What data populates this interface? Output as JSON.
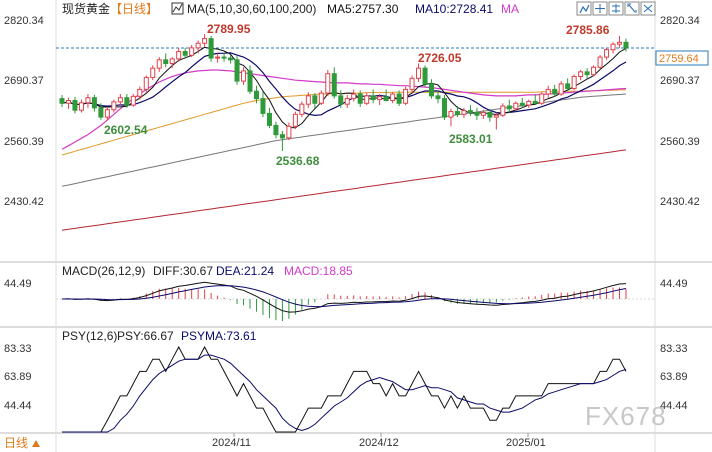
{
  "header": {
    "symbol": "现货黄金",
    "period": "【日线】",
    "ma_params": "MA(5,10,30,60,100,200)",
    "ma5_text": "MA5:2757.30",
    "ma10_text": "MA10:2728.41",
    "ma_more": "MA"
  },
  "macd_header": {
    "params": "MACD(26,12,9)",
    "diff": "DIFF:30.67",
    "dea": "DEA:21.24",
    "macd": "MACD:18.85"
  },
  "psy_header": {
    "params": "PSY(12,6)",
    "psy": "PSY:66.67",
    "psyma": "PSYMA:73.61"
  },
  "price_axis": {
    "ticks": [
      "2820.34",
      "2690.37",
      "2560.39",
      "2430.42"
    ],
    "last_price": "2759.64"
  },
  "macd_axis": {
    "ticks": [
      "44.49",
      "44.49"
    ]
  },
  "psy_axis": {
    "left_ticks": [
      "83.33",
      "63.89",
      "44.44"
    ],
    "right_ticks": [
      "83.33",
      "63.89",
      "44.44"
    ]
  },
  "time_axis": {
    "labels": [
      "2024/11",
      "2024/12",
      "2025/01"
    ]
  },
  "annotations": {
    "h1": "2789.95",
    "h2": "2726.05",
    "h3": "2785.86",
    "l1": "2602.54",
    "l2": "2536.68",
    "l3": "2583.01"
  },
  "footer": {
    "period_switch": "日线"
  },
  "watermark": "FX678",
  "colors": {
    "up": "#e0424b",
    "down": "#2e9a3a",
    "ma5": "#111111",
    "ma10": "#0a0a6a",
    "ma30": "#d23ac8",
    "ma60": "#e09a2a",
    "ma100": "#777777",
    "ma200": "#b3262f",
    "annot_high": "#c0392b",
    "annot_low": "#3e8e3e"
  },
  "chart_data": {
    "type": "candlestick",
    "title": "现货黄金【日线】",
    "price_range": [
      2380,
      2840
    ],
    "x_labels": [
      "2024/11",
      "2024/12",
      "2025/01"
    ],
    "annotated_highs": [
      2789.95,
      2726.05,
      2785.86
    ],
    "annotated_lows": [
      2602.54,
      2536.68,
      2583.01
    ],
    "last_price": 2759.64,
    "ma_latest": {
      "MA5": 2757.3,
      "MA10": 2728.41
    },
    "macd_latest": {
      "DIFF": 30.67,
      "DEA": 21.24,
      "MACD": 18.85
    },
    "psy_latest": {
      "PSY": 66.67,
      "PSYMA": 73.61
    },
    "candles": [
      {
        "o": 2650,
        "h": 2658,
        "l": 2632,
        "c": 2640
      },
      {
        "o": 2640,
        "h": 2652,
        "l": 2628,
        "c": 2646
      },
      {
        "o": 2646,
        "h": 2654,
        "l": 2618,
        "c": 2625
      },
      {
        "o": 2625,
        "h": 2648,
        "l": 2620,
        "c": 2641
      },
      {
        "o": 2641,
        "h": 2660,
        "l": 2630,
        "c": 2652
      },
      {
        "o": 2652,
        "h": 2658,
        "l": 2622,
        "c": 2630
      },
      {
        "o": 2630,
        "h": 2640,
        "l": 2604,
        "c": 2610
      },
      {
        "o": 2610,
        "h": 2632,
        "l": 2602.54,
        "c": 2626
      },
      {
        "o": 2626,
        "h": 2648,
        "l": 2620,
        "c": 2643
      },
      {
        "o": 2643,
        "h": 2660,
        "l": 2636,
        "c": 2652
      },
      {
        "o": 2652,
        "h": 2660,
        "l": 2630,
        "c": 2636
      },
      {
        "o": 2636,
        "h": 2660,
        "l": 2632,
        "c": 2655
      },
      {
        "o": 2655,
        "h": 2676,
        "l": 2648,
        "c": 2670
      },
      {
        "o": 2670,
        "h": 2700,
        "l": 2662,
        "c": 2696
      },
      {
        "o": 2696,
        "h": 2722,
        "l": 2690,
        "c": 2716
      },
      {
        "o": 2716,
        "h": 2740,
        "l": 2708,
        "c": 2734
      },
      {
        "o": 2734,
        "h": 2748,
        "l": 2718,
        "c": 2726
      },
      {
        "o": 2726,
        "h": 2740,
        "l": 2716,
        "c": 2736
      },
      {
        "o": 2736,
        "h": 2760,
        "l": 2730,
        "c": 2752
      },
      {
        "o": 2752,
        "h": 2760,
        "l": 2736,
        "c": 2744
      },
      {
        "o": 2744,
        "h": 2766,
        "l": 2740,
        "c": 2760
      },
      {
        "o": 2760,
        "h": 2776,
        "l": 2748,
        "c": 2770
      },
      {
        "o": 2770,
        "h": 2789.95,
        "l": 2762,
        "c": 2780
      },
      {
        "o": 2780,
        "h": 2786,
        "l": 2730,
        "c": 2738
      },
      {
        "o": 2738,
        "h": 2748,
        "l": 2728,
        "c": 2740
      },
      {
        "o": 2740,
        "h": 2748,
        "l": 2730,
        "c": 2738
      },
      {
        "o": 2738,
        "h": 2745,
        "l": 2726,
        "c": 2734
      },
      {
        "o": 2734,
        "h": 2742,
        "l": 2680,
        "c": 2688
      },
      {
        "o": 2688,
        "h": 2718,
        "l": 2680,
        "c": 2710
      },
      {
        "o": 2710,
        "h": 2722,
        "l": 2660,
        "c": 2666
      },
      {
        "o": 2666,
        "h": 2678,
        "l": 2640,
        "c": 2650
      },
      {
        "o": 2650,
        "h": 2664,
        "l": 2610,
        "c": 2618
      },
      {
        "o": 2618,
        "h": 2630,
        "l": 2586,
        "c": 2592
      },
      {
        "o": 2592,
        "h": 2600,
        "l": 2564,
        "c": 2572
      },
      {
        "o": 2572,
        "h": 2580,
        "l": 2536.68,
        "c": 2565
      },
      {
        "o": 2565,
        "h": 2598,
        "l": 2560,
        "c": 2590
      },
      {
        "o": 2590,
        "h": 2622,
        "l": 2584,
        "c": 2616
      },
      {
        "o": 2616,
        "h": 2644,
        "l": 2610,
        "c": 2638
      },
      {
        "o": 2638,
        "h": 2664,
        "l": 2630,
        "c": 2656
      },
      {
        "o": 2656,
        "h": 2662,
        "l": 2630,
        "c": 2640
      },
      {
        "o": 2640,
        "h": 2668,
        "l": 2636,
        "c": 2662
      },
      {
        "o": 2662,
        "h": 2712,
        "l": 2656,
        "c": 2704
      },
      {
        "o": 2704,
        "h": 2718,
        "l": 2650,
        "c": 2656
      },
      {
        "o": 2656,
        "h": 2668,
        "l": 2630,
        "c": 2638
      },
      {
        "o": 2638,
        "h": 2658,
        "l": 2630,
        "c": 2650
      },
      {
        "o": 2650,
        "h": 2670,
        "l": 2644,
        "c": 2660
      },
      {
        "o": 2660,
        "h": 2668,
        "l": 2632,
        "c": 2640
      },
      {
        "o": 2640,
        "h": 2662,
        "l": 2636,
        "c": 2656
      },
      {
        "o": 2656,
        "h": 2670,
        "l": 2640,
        "c": 2648
      },
      {
        "o": 2648,
        "h": 2660,
        "l": 2636,
        "c": 2654
      },
      {
        "o": 2654,
        "h": 2670,
        "l": 2644,
        "c": 2646
      },
      {
        "o": 2646,
        "h": 2664,
        "l": 2640,
        "c": 2660
      },
      {
        "o": 2660,
        "h": 2668,
        "l": 2634,
        "c": 2640
      },
      {
        "o": 2640,
        "h": 2676,
        "l": 2636,
        "c": 2670
      },
      {
        "o": 2670,
        "h": 2700,
        "l": 2662,
        "c": 2694
      },
      {
        "o": 2694,
        "h": 2726.05,
        "l": 2686,
        "c": 2716
      },
      {
        "o": 2716,
        "h": 2722,
        "l": 2676,
        "c": 2682
      },
      {
        "o": 2682,
        "h": 2692,
        "l": 2650,
        "c": 2656
      },
      {
        "o": 2656,
        "h": 2668,
        "l": 2640,
        "c": 2650
      },
      {
        "o": 2650,
        "h": 2658,
        "l": 2604,
        "c": 2610
      },
      {
        "o": 2610,
        "h": 2628,
        "l": 2590,
        "c": 2622
      },
      {
        "o": 2622,
        "h": 2634,
        "l": 2610,
        "c": 2616
      },
      {
        "o": 2616,
        "h": 2630,
        "l": 2608,
        "c": 2624
      },
      {
        "o": 2624,
        "h": 2636,
        "l": 2612,
        "c": 2620
      },
      {
        "o": 2620,
        "h": 2630,
        "l": 2604,
        "c": 2614
      },
      {
        "o": 2614,
        "h": 2626,
        "l": 2606,
        "c": 2620
      },
      {
        "o": 2620,
        "h": 2628,
        "l": 2600,
        "c": 2610
      },
      {
        "o": 2610,
        "h": 2620,
        "l": 2583.01,
        "c": 2614
      },
      {
        "o": 2614,
        "h": 2640,
        "l": 2610,
        "c": 2634
      },
      {
        "o": 2634,
        "h": 2648,
        "l": 2620,
        "c": 2628
      },
      {
        "o": 2628,
        "h": 2644,
        "l": 2624,
        "c": 2640
      },
      {
        "o": 2640,
        "h": 2652,
        "l": 2630,
        "c": 2636
      },
      {
        "o": 2636,
        "h": 2648,
        "l": 2630,
        "c": 2644
      },
      {
        "o": 2644,
        "h": 2660,
        "l": 2636,
        "c": 2640
      },
      {
        "o": 2640,
        "h": 2664,
        "l": 2636,
        "c": 2660
      },
      {
        "o": 2660,
        "h": 2678,
        "l": 2652,
        "c": 2670
      },
      {
        "o": 2670,
        "h": 2680,
        "l": 2654,
        "c": 2660
      },
      {
        "o": 2660,
        "h": 2688,
        "l": 2656,
        "c": 2682
      },
      {
        "o": 2682,
        "h": 2694,
        "l": 2666,
        "c": 2672
      },
      {
        "o": 2672,
        "h": 2702,
        "l": 2668,
        "c": 2698
      },
      {
        "o": 2698,
        "h": 2712,
        "l": 2690,
        "c": 2708
      },
      {
        "o": 2708,
        "h": 2716,
        "l": 2694,
        "c": 2702
      },
      {
        "o": 2702,
        "h": 2722,
        "l": 2698,
        "c": 2718
      },
      {
        "o": 2718,
        "h": 2744,
        "l": 2714,
        "c": 2740
      },
      {
        "o": 2740,
        "h": 2760,
        "l": 2734,
        "c": 2756
      },
      {
        "o": 2756,
        "h": 2772,
        "l": 2748,
        "c": 2768
      },
      {
        "o": 2768,
        "h": 2785.86,
        "l": 2760,
        "c": 2772
      },
      {
        "o": 2772,
        "h": 2780,
        "l": 2752,
        "c": 2759.64
      }
    ],
    "ma_lines": {
      "MA30": [
        2540,
        2548,
        2556,
        2564,
        2572,
        2582,
        2592,
        2604,
        2616,
        2628,
        2640,
        2650,
        2660,
        2670,
        2678,
        2686,
        2692,
        2698,
        2702,
        2706,
        2708,
        2710,
        2711,
        2712,
        2712,
        2711,
        2710,
        2708,
        2706,
        2704,
        2702,
        2700,
        2698,
        2696,
        2694,
        2692,
        2690,
        2689,
        2688,
        2687,
        2686,
        2685,
        2684,
        2684,
        2684,
        2683,
        2682,
        2682,
        2681,
        2681,
        2680,
        2679,
        2678,
        2678,
        2677,
        2676,
        2675,
        2674,
        2672,
        2670,
        2668,
        2666,
        2664,
        2662,
        2660,
        2658,
        2657,
        2656,
        2656,
        2656,
        2656,
        2657,
        2658,
        2658,
        2659,
        2660,
        2661,
        2662,
        2663,
        2664,
        2665,
        2666,
        2667,
        2668,
        2669,
        2670,
        2671,
        2672
      ],
      "MA60": [
        2528,
        2532,
        2536,
        2540,
        2544,
        2548,
        2552,
        2556,
        2560,
        2564,
        2568,
        2572,
        2576,
        2580,
        2584,
        2588,
        2592,
        2596,
        2600,
        2604,
        2608,
        2612,
        2616,
        2620,
        2624,
        2628,
        2632,
        2636,
        2640,
        2643,
        2646,
        2648,
        2650,
        2652,
        2654,
        2655,
        2656,
        2657,
        2658,
        2659,
        2660,
        2660,
        2661,
        2661,
        2662,
        2662,
        2662,
        2663,
        2663,
        2663,
        2663,
        2664,
        2664,
        2664,
        2664,
        2664,
        2664,
        2664,
        2664,
        2664,
        2664,
        2664,
        2664,
        2664,
        2664,
        2664,
        2664,
        2664,
        2664,
        2664,
        2664,
        2664,
        2664,
        2664,
        2665,
        2665,
        2665,
        2665,
        2666,
        2666,
        2666,
        2667,
        2667,
        2667,
        2668,
        2668,
        2669,
        2669
      ],
      "MA100": [
        2460,
        2463,
        2466,
        2469,
        2472,
        2475,
        2478,
        2481,
        2484,
        2487,
        2490,
        2493,
        2496,
        2499,
        2502,
        2505,
        2508,
        2511,
        2514,
        2517,
        2520,
        2523,
        2526,
        2529,
        2532,
        2535,
        2538,
        2541,
        2544,
        2547,
        2550,
        2553,
        2556,
        2559,
        2561,
        2563,
        2565,
        2567,
        2569,
        2571,
        2573,
        2575,
        2577,
        2579,
        2581,
        2583,
        2585,
        2587,
        2589,
        2591,
        2593,
        2595,
        2597,
        2599,
        2601,
        2603,
        2605,
        2607,
        2609,
        2611,
        2613,
        2615,
        2617,
        2619,
        2621,
        2623,
        2625,
        2627,
        2629,
        2631,
        2633,
        2635,
        2637,
        2639,
        2641,
        2643,
        2645,
        2647,
        2649,
        2651,
        2653,
        2654,
        2655,
        2656,
        2657,
        2658,
        2659,
        2660
      ],
      "MA200": [
        2365,
        2367,
        2369,
        2371,
        2373,
        2375,
        2377,
        2379,
        2381,
        2383,
        2385,
        2387,
        2389,
        2391,
        2393,
        2395,
        2397,
        2399,
        2401,
        2403,
        2405,
        2407,
        2409,
        2411,
        2413,
        2415,
        2417,
        2419,
        2421,
        2423,
        2425,
        2427,
        2429,
        2431,
        2433,
        2435,
        2437,
        2439,
        2441,
        2443,
        2445,
        2447,
        2449,
        2451,
        2453,
        2455,
        2457,
        2459,
        2461,
        2463,
        2465,
        2467,
        2469,
        2471,
        2473,
        2475,
        2477,
        2479,
        2481,
        2483,
        2485,
        2487,
        2489,
        2491,
        2493,
        2495,
        2497,
        2499,
        2501,
        2503,
        2505,
        2507,
        2509,
        2511,
        2513,
        2515,
        2517,
        2519,
        2521,
        2523,
        2525,
        2527,
        2529,
        2531,
        2533,
        2535,
        2537,
        2539
      ]
    }
  }
}
